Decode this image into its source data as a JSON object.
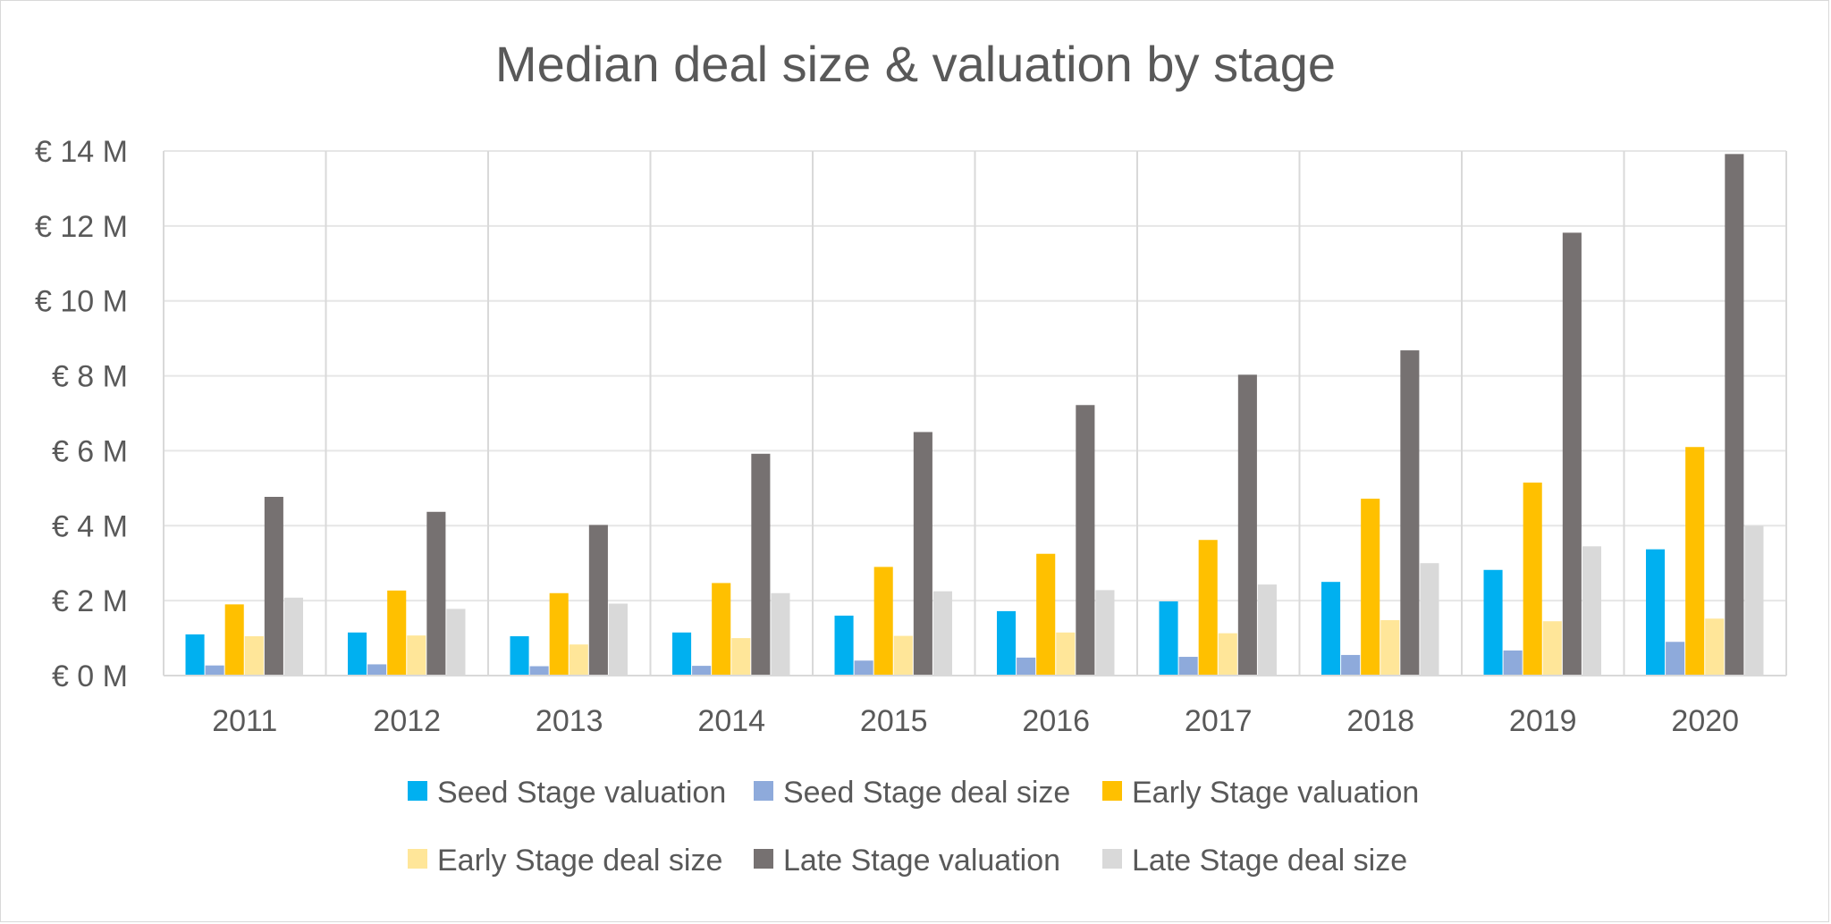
{
  "chart_data": {
    "type": "bar",
    "title": "Median deal size & valuation by stage",
    "xlabel": "",
    "ylabel": "",
    "ylim": [
      0,
      14
    ],
    "y_ticks": [
      0,
      2,
      4,
      6,
      8,
      10,
      12,
      14
    ],
    "y_tick_labels": [
      "€ 0 M",
      "€ 2 M",
      "€ 4 M",
      "€ 6 M",
      "€ 8 M",
      "€ 10 M",
      "€ 12 M",
      "€ 14 M"
    ],
    "grid": true,
    "legend_position": "bottom",
    "categories": [
      "2011",
      "2012",
      "2013",
      "2014",
      "2015",
      "2016",
      "2017",
      "2018",
      "2019",
      "2020"
    ],
    "series": [
      {
        "name": "Seed Stage valuation",
        "color": "#00b0f0",
        "values": [
          1.1,
          1.15,
          1.05,
          1.15,
          1.6,
          1.72,
          1.98,
          2.5,
          2.82,
          3.37
        ]
      },
      {
        "name": "Seed Stage deal size",
        "color": "#8eaadb",
        "values": [
          0.27,
          0.3,
          0.25,
          0.26,
          0.4,
          0.48,
          0.5,
          0.55,
          0.67,
          0.9
        ]
      },
      {
        "name": "Early Stage valuation",
        "color": "#ffc000",
        "values": [
          1.9,
          2.27,
          2.2,
          2.47,
          2.9,
          3.25,
          3.62,
          4.72,
          5.15,
          6.1
        ]
      },
      {
        "name": "Early Stage deal size",
        "color": "#ffe699",
        "values": [
          1.05,
          1.07,
          0.83,
          1.0,
          1.06,
          1.15,
          1.13,
          1.48,
          1.45,
          1.52
        ]
      },
      {
        "name": "Late Stage valuation",
        "color": "#767171",
        "values": [
          4.77,
          4.37,
          4.02,
          5.92,
          6.5,
          7.22,
          8.03,
          8.68,
          11.82,
          13.92
        ]
      },
      {
        "name": "Late Stage deal size",
        "color": "#d9d9d9",
        "values": [
          2.08,
          1.78,
          1.92,
          2.2,
          2.25,
          2.28,
          2.43,
          3.0,
          3.45,
          4.0
        ]
      }
    ]
  }
}
